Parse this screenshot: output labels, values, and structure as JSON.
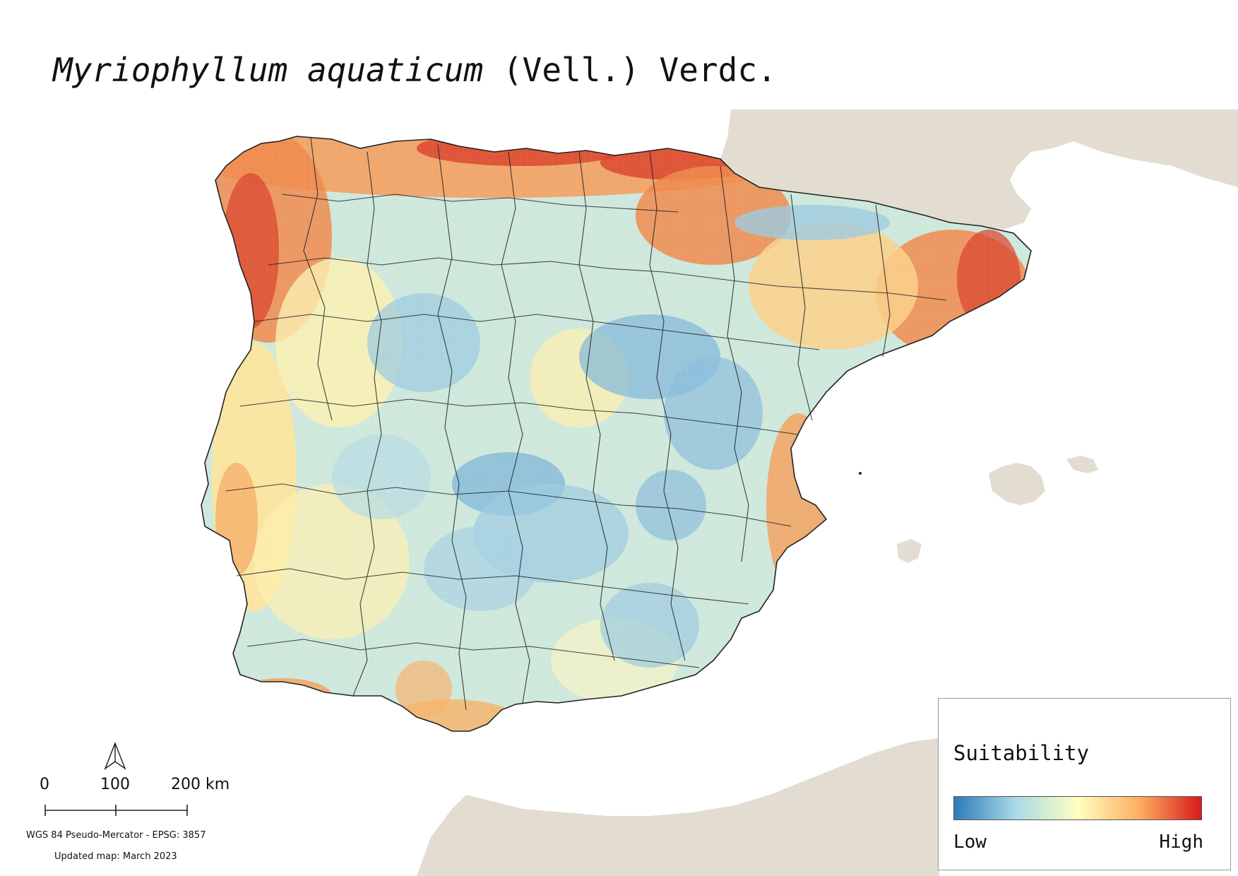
{
  "title": {
    "species": "Myriophyllum aquaticum",
    "authority": "(Vell.) Verdc."
  },
  "scale": {
    "labels": [
      "0",
      "100",
      "200 km"
    ],
    "crs": "WGS 84 Pseudo-Mercator  - EPSG: 3857",
    "updated": "Updated map: March 2023"
  },
  "legend": {
    "title": "Suitability",
    "low_label": "Low",
    "high_label": "High",
    "ramp_colors": [
      "#2c7bb6",
      "#abd9e9",
      "#ffffbf",
      "#fdae61",
      "#d7191c"
    ]
  },
  "colors": {
    "land_outside": "#e2ddd0",
    "water": "#ffffff",
    "border": "#222222"
  },
  "icons": {
    "north_arrow": "north-arrow-icon"
  }
}
